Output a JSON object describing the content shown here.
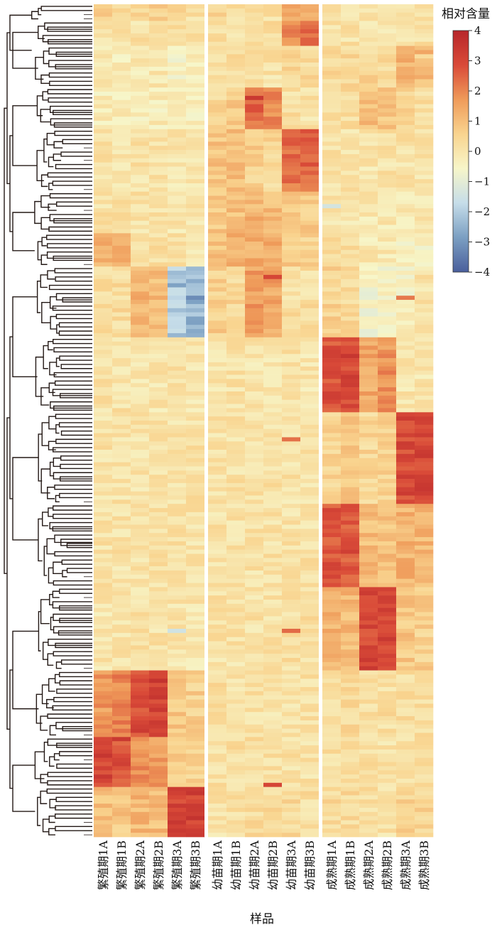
{
  "chart_data": {
    "type": "heatmap",
    "title": "",
    "xlabel": "样品",
    "ylabel": "",
    "legend_title": "相对含量",
    "legend_position": "top-right",
    "colorbar_ticks": [
      4,
      3,
      2,
      1,
      0,
      -1,
      -2,
      -3,
      -4
    ],
    "value_range": [
      -4,
      4
    ],
    "colorscale": [
      "#4a5f9c",
      "#7b9fc2",
      "#c6dde9",
      "#f7f6c9",
      "#f9d48f",
      "#ef9b5a",
      "#d94a38",
      "#b7262a"
    ],
    "columns": [
      "繁殖期1A",
      "繁殖期1B",
      "繁殖期2A",
      "繁殖期2B",
      "繁殖期3A",
      "繁殖期3B",
      "幼苗期1A",
      "幼苗期1B",
      "幼苗期2A",
      "幼苗期2B",
      "幼苗期3A",
      "幼苗期3B",
      "成熟期1A",
      "成熟期1B",
      "成熟期2A",
      "成熟期2B",
      "成熟期3A",
      "成熟期3B"
    ],
    "column_groups": [
      {
        "name": "繁殖期",
        "count": 6
      },
      {
        "name": "幼苗期",
        "count": 6
      },
      {
        "name": "成熟期",
        "count": 6
      }
    ],
    "row_count": 200,
    "row_dendrogram": true,
    "blocks": [
      {
        "rows": [
          0,
          4
        ],
        "values": [
          0.5,
          0.3,
          0.5,
          0.5,
          0.5,
          0.2,
          0.5,
          0.2,
          0.1,
          0.2,
          1.4,
          1.5,
          0.1,
          0.1,
          0.1,
          0.1,
          0.1,
          0.1
        ]
      },
      {
        "rows": [
          4,
          10
        ],
        "values": [
          0.1,
          0.1,
          0.1,
          0.1,
          0.1,
          0.1,
          0.3,
          0.1,
          0.1,
          0.2,
          2.0,
          2.2,
          0.1,
          0.1,
          0.1,
          0.1,
          0.1,
          0.1
        ]
      },
      {
        "rows": [
          10,
          20
        ],
        "values": [
          -0.2,
          -0.2,
          -0.1,
          -0.1,
          -0.4,
          -0.3,
          0.1,
          0.2,
          0.1,
          0.1,
          0.5,
          0.3,
          0.3,
          0.4,
          0.4,
          0.3,
          1.3,
          1.1
        ]
      },
      {
        "rows": [
          20,
          30
        ],
        "values": [
          -0.2,
          -0.2,
          -0.2,
          -0.2,
          -0.3,
          -0.3,
          0.4,
          0.7,
          2.4,
          2.0,
          0.2,
          0.1,
          0.2,
          0.3,
          1.0,
          0.9,
          0.6,
          0.3
        ]
      },
      {
        "rows": [
          30,
          45
        ],
        "values": [
          0.1,
          0.1,
          0.1,
          0.1,
          0.0,
          0.0,
          0.9,
          1.0,
          0.6,
          0.4,
          2.3,
          2.5,
          0.1,
          0.1,
          0.0,
          0.1,
          0.1,
          0.0
        ]
      },
      {
        "rows": [
          45,
          55
        ],
        "values": [
          0.1,
          0.1,
          0.1,
          0.1,
          0.0,
          0.0,
          0.8,
          1.0,
          1.2,
          1.1,
          0.9,
          0.7,
          0.0,
          0.0,
          -0.1,
          -0.1,
          -0.2,
          -0.1
        ]
      },
      {
        "rows": [
          55,
          63
        ],
        "values": [
          1.2,
          1.2,
          0.3,
          0.2,
          0.1,
          0.0,
          1.0,
          1.2,
          1.3,
          1.4,
          0.7,
          0.6,
          0.2,
          0.2,
          -0.1,
          -0.1,
          -0.5,
          -0.4
        ]
      },
      {
        "rows": [
          63,
          80
        ],
        "values": [
          0.3,
          0.3,
          1.2,
          1.1,
          -2.0,
          -2.4,
          0.6,
          0.4,
          1.6,
          1.5,
          0.2,
          0.2,
          0.5,
          0.4,
          -0.6,
          -0.5,
          -0.4,
          0.1
        ]
      },
      {
        "rows": [
          80,
          98
        ],
        "values": [
          0.1,
          0.1,
          0.0,
          0.0,
          0.1,
          0.0,
          0.0,
          0.1,
          0.0,
          0.0,
          0.1,
          0.0,
          2.8,
          3.0,
          1.4,
          1.8,
          0.0,
          0.0
        ]
      },
      {
        "rows": [
          98,
          120
        ],
        "values": [
          0.1,
          0.1,
          0.1,
          0.1,
          0.1,
          0.1,
          0.1,
          0.1,
          0.1,
          0.1,
          0.1,
          0.1,
          0.5,
          0.7,
          0.4,
          0.6,
          2.9,
          3.0
        ]
      },
      {
        "rows": [
          120,
          140
        ],
        "values": [
          0.1,
          0.1,
          0.1,
          0.1,
          0.1,
          0.1,
          0.1,
          0.1,
          0.1,
          0.1,
          0.1,
          0.1,
          2.7,
          2.6,
          1.0,
          0.9,
          1.2,
          1.1
        ]
      },
      {
        "rows": [
          140,
          160
        ],
        "values": [
          0.0,
          0.0,
          0.1,
          0.1,
          0.0,
          0.0,
          0.1,
          0.1,
          0.1,
          0.1,
          0.2,
          0.2,
          1.2,
          1.1,
          3.0,
          3.0,
          0.8,
          0.6
        ]
      },
      {
        "rows": [
          160,
          176
        ],
        "values": [
          1.7,
          2.0,
          2.9,
          3.1,
          0.8,
          0.6,
          0.2,
          0.1,
          0.1,
          0.1,
          0.1,
          0.1,
          0.3,
          0.3,
          0.2,
          0.2,
          0.2,
          0.2
        ]
      },
      {
        "rows": [
          176,
          188
        ],
        "values": [
          3.0,
          2.8,
          1.8,
          1.6,
          0.6,
          0.5,
          0.2,
          0.2,
          0.2,
          0.2,
          0.1,
          0.1,
          0.2,
          0.2,
          0.2,
          0.1,
          0.2,
          0.1
        ]
      },
      {
        "rows": [
          188,
          200
        ],
        "values": [
          0.9,
          0.8,
          1.1,
          1.0,
          3.1,
          3.1,
          0.1,
          0.1,
          0.3,
          0.3,
          0.3,
          0.2,
          0.3,
          0.3,
          0.2,
          0.1,
          0.6,
          0.5
        ]
      }
    ],
    "highlights": [
      {
        "row": 22,
        "col": 8,
        "value": 3.4
      },
      {
        "row": 12,
        "col": 17,
        "value": 0.3
      },
      {
        "row": 65,
        "col": 9,
        "value": 3.0
      },
      {
        "row": 84,
        "col": 13,
        "value": 3.5
      },
      {
        "row": 104,
        "col": 10,
        "value": 2.3
      },
      {
        "row": 131,
        "col": 13,
        "value": 3.2
      },
      {
        "row": 162,
        "col": 3,
        "value": 3.6
      },
      {
        "row": 180,
        "col": 0,
        "value": 3.5
      },
      {
        "row": 176,
        "col": 1,
        "value": 3.4
      },
      {
        "row": 187,
        "col": 9,
        "value": 3.0
      },
      {
        "row": 195,
        "col": 5,
        "value": 3.6
      },
      {
        "row": 150,
        "col": 10,
        "value": 2.4
      },
      {
        "row": 70,
        "col": 16,
        "value": 2.2
      },
      {
        "row": 67,
        "col": 4,
        "value": -2.8
      },
      {
        "row": 70,
        "col": 5,
        "value": -3.2
      },
      {
        "row": 48,
        "col": 12,
        "value": -1.4
      },
      {
        "row": 150,
        "col": 4,
        "value": -1.5
      }
    ]
  }
}
